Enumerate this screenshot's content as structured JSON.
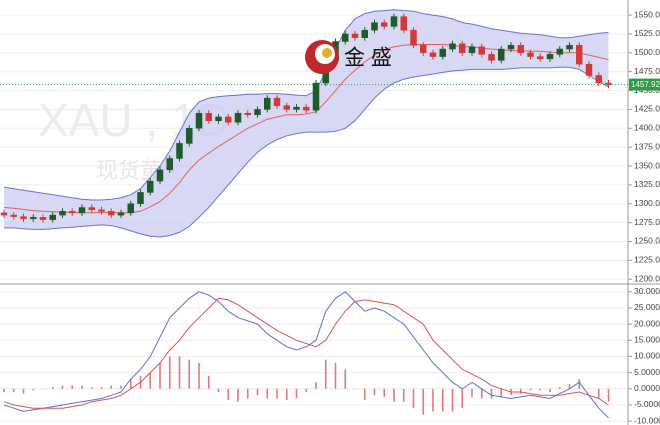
{
  "chart_data": [
    {
      "type": "candlestick",
      "watermark_symbol": "XAU , 1D",
      "watermark_name": "现货黄金",
      "logo_text": "金 盛",
      "ylim": [
        1195,
        1570
      ],
      "yticks": [
        {
          "value": 1200,
          "label": "1200.00"
        },
        {
          "value": 1225,
          "label": "1225.00"
        },
        {
          "value": 1250,
          "label": "1250.00"
        },
        {
          "value": 1275,
          "label": "1275.00"
        },
        {
          "value": 1300,
          "label": "1300.00"
        },
        {
          "value": 1325,
          "label": "1325.00"
        },
        {
          "value": 1350,
          "label": "1350.00"
        },
        {
          "value": 1375,
          "label": "1375.00"
        },
        {
          "value": 1400,
          "label": "1400.00"
        },
        {
          "value": 1425,
          "label": "1425.00"
        },
        {
          "value": 1450,
          "label": "1450.00"
        },
        {
          "value": 1475,
          "label": "1475.00"
        },
        {
          "value": 1500,
          "label": "1500.00"
        },
        {
          "value": 1525,
          "label": "1525.00"
        },
        {
          "value": 1550,
          "label": "1550.00"
        }
      ],
      "grid": true,
      "up_color": "#1e5a2a",
      "down_color": "#d23a3a",
      "last_price": {
        "value": 1457.92,
        "label": "1457.92",
        "color": "#2e9a4a"
      },
      "band_fill": "#c9ccf2",
      "open": [
        1288,
        1285,
        1283,
        1280,
        1282,
        1279,
        1285,
        1290,
        1288,
        1295,
        1292,
        1290,
        1285,
        1288,
        1300,
        1315,
        1330,
        1345,
        1360,
        1380,
        1400,
        1420,
        1410,
        1415,
        1408,
        1420,
        1418,
        1425,
        1440,
        1430,
        1425,
        1428,
        1424,
        1460,
        1490,
        1515,
        1525,
        1520,
        1530,
        1540,
        1535,
        1548,
        1530,
        1510,
        1500,
        1495,
        1505,
        1512,
        1500,
        1508,
        1498,
        1490,
        1505,
        1510,
        1500,
        1495,
        1492,
        1498,
        1505,
        1510,
        1485,
        1470,
        1460
      ],
      "high": [
        1292,
        1289,
        1287,
        1286,
        1286,
        1289,
        1294,
        1294,
        1299,
        1299,
        1296,
        1294,
        1292,
        1304,
        1319,
        1334,
        1349,
        1364,
        1384,
        1404,
        1424,
        1424,
        1419,
        1419,
        1424,
        1424,
        1429,
        1444,
        1444,
        1434,
        1432,
        1432,
        1464,
        1494,
        1519,
        1529,
        1529,
        1534,
        1544,
        1544,
        1552,
        1552,
        1534,
        1514,
        1504,
        1509,
        1516,
        1516,
        1512,
        1512,
        1502,
        1509,
        1514,
        1514,
        1504,
        1499,
        1502,
        1509,
        1514,
        1514,
        1489,
        1474,
        1464
      ],
      "low": [
        1281,
        1279,
        1276,
        1276,
        1275,
        1275,
        1281,
        1284,
        1284,
        1288,
        1286,
        1281,
        1281,
        1284,
        1296,
        1311,
        1326,
        1341,
        1356,
        1376,
        1396,
        1406,
        1406,
        1404,
        1404,
        1414,
        1414,
        1421,
        1426,
        1421,
        1421,
        1420,
        1420,
        1456,
        1486,
        1511,
        1516,
        1516,
        1526,
        1531,
        1531,
        1526,
        1506,
        1496,
        1491,
        1491,
        1501,
        1496,
        1496,
        1494,
        1486,
        1486,
        1501,
        1496,
        1491,
        1488,
        1488,
        1494,
        1501,
        1481,
        1466,
        1456,
        1453
      ],
      "close": [
        1285,
        1283,
        1280,
        1282,
        1279,
        1285,
        1290,
        1288,
        1295,
        1292,
        1290,
        1285,
        1288,
        1300,
        1315,
        1330,
        1345,
        1360,
        1380,
        1400,
        1420,
        1410,
        1415,
        1408,
        1420,
        1418,
        1425,
        1440,
        1430,
        1425,
        1428,
        1424,
        1460,
        1490,
        1515,
        1525,
        1520,
        1530,
        1540,
        1535,
        1548,
        1530,
        1510,
        1500,
        1495,
        1505,
        1512,
        1500,
        1508,
        1498,
        1490,
        1505,
        1510,
        1500,
        1495,
        1492,
        1498,
        1505,
        1510,
        1485,
        1470,
        1460,
        1457.92
      ],
      "series": [
        {
          "color": "#6a70d6",
          "values": [
            1322,
            1320,
            1318,
            1316,
            1314,
            1312,
            1310,
            1308,
            1306,
            1305,
            1305,
            1306,
            1308,
            1312,
            1320,
            1335,
            1350,
            1370,
            1395,
            1420,
            1435,
            1440,
            1442,
            1443,
            1444,
            1445,
            1445,
            1446,
            1446,
            1445,
            1444,
            1443,
            1450,
            1475,
            1505,
            1530,
            1545,
            1552,
            1555,
            1556,
            1557,
            1556,
            1555,
            1552,
            1550,
            1548,
            1545,
            1540,
            1538,
            1535,
            1532,
            1530,
            1528,
            1526,
            1525,
            1524,
            1522,
            1520,
            1520,
            1522,
            1524,
            1526,
            1527
          ]
        },
        {
          "color": "#e06060",
          "values": [
            1295,
            1294,
            1292.5,
            1291,
            1290,
            1289.5,
            1289,
            1288.5,
            1288,
            1288,
            1288.5,
            1288.5,
            1288,
            1288,
            1290,
            1296,
            1303,
            1314,
            1328,
            1345,
            1358,
            1367,
            1376,
            1384,
            1392,
            1400,
            1406,
            1412,
            1415,
            1418,
            1418,
            1419,
            1422,
            1435,
            1450,
            1465,
            1477,
            1488,
            1497,
            1504,
            1508,
            1510,
            1511,
            1511,
            1511,
            1511,
            1510,
            1508,
            1508,
            1506,
            1505,
            1504,
            1503,
            1503,
            1502,
            1502,
            1501,
            1500,
            1500,
            1500,
            1497,
            1494,
            1491
          ]
        },
        {
          "color": "#6a70d6",
          "values": [
            1268,
            1268,
            1267,
            1266,
            1266,
            1267,
            1268,
            1269,
            1270,
            1271,
            1272,
            1271,
            1268,
            1264,
            1260,
            1257,
            1256,
            1258,
            1262,
            1270,
            1282,
            1295,
            1310,
            1325,
            1340,
            1355,
            1368,
            1378,
            1385,
            1390,
            1393,
            1395,
            1395,
            1395,
            1396,
            1400,
            1410,
            1425,
            1440,
            1452,
            1460,
            1465,
            1468,
            1470,
            1472,
            1474,
            1476,
            1477,
            1478,
            1478,
            1478,
            1478,
            1479,
            1480,
            1480,
            1480,
            1480,
            1481,
            1481,
            1478,
            1470,
            1462,
            1455
          ]
        }
      ]
    },
    {
      "type": "macd",
      "ylim": [
        -11.2,
        32.1
      ],
      "yticks": [
        {
          "value": -10,
          "label": "-10.0000"
        },
        {
          "value": -5,
          "label": "-5.0000"
        },
        {
          "value": 0,
          "label": "0.0000"
        },
        {
          "value": 5,
          "label": "5.0000"
        },
        {
          "value": 10,
          "label": "10.0000"
        },
        {
          "value": 15,
          "label": "15.0000"
        },
        {
          "value": 20,
          "label": "20.0000"
        },
        {
          "value": 25,
          "label": "25.0000"
        },
        {
          "value": 30,
          "label": "30.0000"
        }
      ],
      "grid": true,
      "histogram": {
        "color": "#e07a7a",
        "values": [
          -1,
          -1,
          -1.5,
          -0.5,
          0,
          0.5,
          1,
          1,
          1,
          0.5,
          0.5,
          1,
          1,
          3,
          4,
          5,
          8,
          10,
          10,
          9,
          8,
          4,
          -1,
          -3.5,
          -4,
          -3,
          -2,
          -3,
          -3,
          -3.5,
          -3,
          -1,
          2,
          9,
          8,
          6,
          0,
          -3.5,
          -2,
          -2.5,
          -4,
          -4,
          -6,
          -8,
          -7,
          -7,
          -7,
          -6,
          -2.5,
          -3,
          -3,
          -2.5,
          -2,
          -1.5,
          -0.5,
          -0.5,
          -1,
          0.5,
          1.5,
          3,
          0,
          -3,
          -4
        ]
      },
      "series": [
        {
          "color": "#5b6fe0",
          "values": [
            -5,
            -6,
            -7,
            -6.5,
            -6,
            -5.5,
            -5,
            -4.5,
            -4,
            -3.5,
            -3,
            -2,
            -1,
            3,
            6,
            10,
            16,
            22,
            25,
            28,
            30,
            29,
            27,
            24,
            22,
            21,
            20,
            17,
            15,
            13,
            12,
            13,
            15,
            24,
            28,
            30,
            27,
            24,
            25,
            24,
            22,
            20,
            16,
            12,
            8,
            5,
            2,
            0,
            2,
            0,
            -2,
            -2.5,
            -3,
            -2.5,
            -2,
            -2.5,
            -3,
            -1.5,
            0,
            2,
            -2,
            -6,
            -9
          ]
        },
        {
          "color": "#e05050",
          "values": [
            -4,
            -5,
            -5.5,
            -6,
            -6,
            -6,
            -6,
            -5.5,
            -5,
            -4,
            -3.5,
            -3,
            -2,
            0,
            2,
            5,
            8,
            12,
            15,
            19,
            22,
            25,
            28,
            27.5,
            26,
            24,
            22,
            20,
            18,
            16.5,
            15,
            14,
            13,
            15,
            20,
            24,
            27,
            27.5,
            27,
            26.5,
            26,
            24,
            22,
            20,
            15,
            12,
            9,
            6,
            4.5,
            3,
            1,
            0,
            -1,
            -1,
            -1.5,
            -2,
            -2,
            -2,
            -1.5,
            -1,
            -2,
            -3,
            -5
          ]
        }
      ]
    }
  ]
}
